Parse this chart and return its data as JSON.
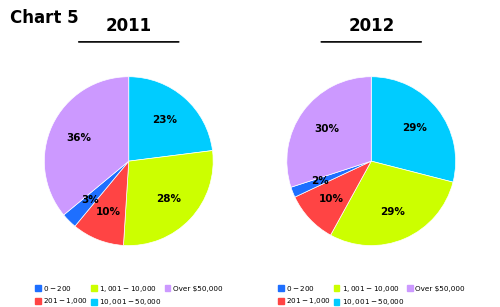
{
  "chart_title": "Chart 5",
  "year_2011": {
    "title": "2011",
    "values": [
      23,
      28,
      10,
      3,
      36
    ],
    "colors": [
      "#00ccff",
      "#ccff00",
      "#ff4444",
      "#1e6fff",
      "#cc99ff"
    ],
    "labels": [
      "23%",
      "28%",
      "10%",
      "3%",
      "36%"
    ],
    "startangle": 90
  },
  "year_2012": {
    "title": "2012",
    "values": [
      29,
      29,
      10,
      2,
      30
    ],
    "colors": [
      "#00ccff",
      "#ccff00",
      "#ff4444",
      "#1e6fff",
      "#cc99ff"
    ],
    "labels": [
      "29%",
      "29%",
      "10%",
      "2%",
      "30%"
    ],
    "startangle": 90
  },
  "legend_labels": [
    "$0 - $200",
    "$201 - $1,000",
    "$1,001 - $10,000",
    "$10,001 - $50,000",
    "Over $50,000"
  ],
  "legend_colors": [
    "#1e6fff",
    "#ff4444",
    "#ccff00",
    "#00ccff",
    "#cc99ff"
  ]
}
